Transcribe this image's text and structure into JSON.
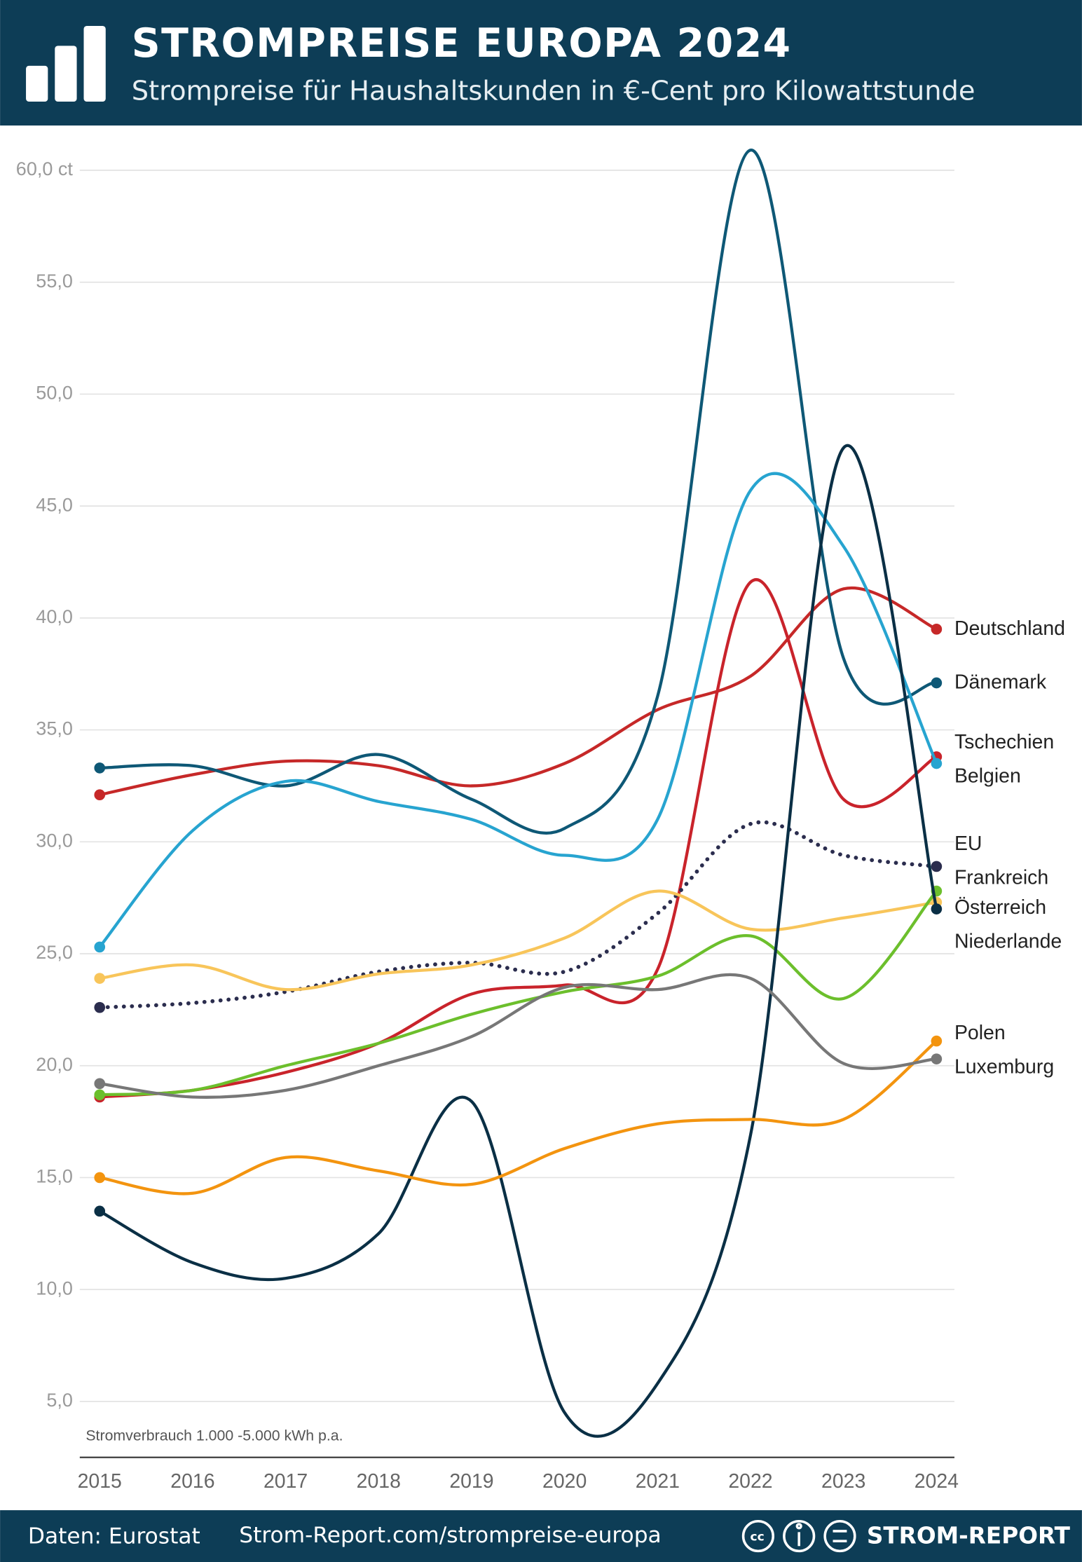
{
  "chart_data": {
    "type": "line",
    "title": "STROMPREISE EUROPA 2024",
    "subtitle": "Strompreise für Haushaltskunden in €-Cent pro Kilowattstunde",
    "annotation": "Stromverbrauch 1.000 -5.000 kWh p.a.",
    "source": "Daten: Eurostat",
    "url": "Strom-Report.com/strompreise-europa",
    "brand": "STROM-REPORT",
    "categories": [
      "2015",
      "2016",
      "2017",
      "2018",
      "2019",
      "2020",
      "2021",
      "2022",
      "2023",
      "2024"
    ],
    "ylim": [
      2.5,
      62
    ],
    "yticks": [
      {
        "value": 5,
        "label": "5,0"
      },
      {
        "value": 10,
        "label": "10,0"
      },
      {
        "value": 15,
        "label": "15,0"
      },
      {
        "value": 20,
        "label": "20,0"
      },
      {
        "value": 25,
        "label": "25,0"
      },
      {
        "value": 30,
        "label": "30,0"
      },
      {
        "value": 35,
        "label": "35,0"
      },
      {
        "value": 40,
        "label": "40,0"
      },
      {
        "value": 45,
        "label": "45,0"
      },
      {
        "value": 50,
        "label": "50,0"
      },
      {
        "value": 55,
        "label": "55,0"
      },
      {
        "value": 60,
        "label": "60,0 ct"
      }
    ],
    "grid": true,
    "series": [
      {
        "name": "Deutschland",
        "color": "#c62828",
        "values": [
          32.1,
          33.0,
          33.6,
          33.4,
          32.5,
          33.5,
          35.9,
          37.4,
          41.3,
          39.5
        ]
      },
      {
        "name": "Dänemark",
        "color": "#0e5876",
        "values": [
          33.3,
          33.4,
          32.5,
          33.9,
          31.9,
          30.6,
          36.5,
          60.9,
          38.2,
          37.1
        ]
      },
      {
        "name": "Tschechien",
        "color": "#c9232b",
        "values": [
          18.6,
          18.9,
          19.7,
          21.0,
          23.2,
          23.6,
          24.3,
          41.6,
          31.9,
          33.8
        ]
      },
      {
        "name": "Belgien",
        "color": "#27a4d0",
        "values": [
          25.3,
          30.5,
          32.7,
          31.8,
          31.0,
          29.4,
          31.0,
          45.7,
          43.2,
          33.5
        ]
      },
      {
        "name": "EU",
        "color": "#2b2d4e",
        "dotted": true,
        "values": [
          22.6,
          22.8,
          23.3,
          24.2,
          24.6,
          24.2,
          26.8,
          30.8,
          29.4,
          28.9
        ]
      },
      {
        "name": "Frankreich",
        "color": "#f8c55a",
        "values": [
          23.9,
          24.5,
          23.4,
          24.1,
          24.5,
          25.7,
          27.8,
          26.1,
          26.6,
          27.3
        ]
      },
      {
        "name": "Österreich",
        "color": "#6cbf2c",
        "values": [
          18.7,
          18.9,
          20.0,
          21.0,
          22.3,
          23.3,
          24.0,
          25.8,
          23.0,
          27.8
        ]
      },
      {
        "name": "Niederlande",
        "color": "#0a2f45",
        "values": [
          13.5,
          11.2,
          10.5,
          12.5,
          18.4,
          4.5,
          5.8,
          16.9,
          47.6,
          27.0
        ]
      },
      {
        "name": "Polen",
        "color": "#f3940f",
        "values": [
          15.0,
          14.3,
          15.9,
          15.3,
          14.7,
          16.3,
          17.4,
          17.6,
          17.6,
          21.1
        ]
      },
      {
        "name": "Luxemburg",
        "color": "#777777",
        "values": [
          19.2,
          18.6,
          18.9,
          20.0,
          21.3,
          23.5,
          23.4,
          23.9,
          20.1,
          20.3
        ]
      }
    ]
  }
}
